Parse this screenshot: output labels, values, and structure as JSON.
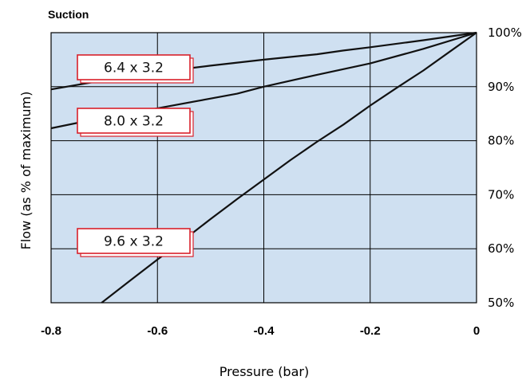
{
  "chart_data": {
    "type": "line",
    "title": "Suction",
    "xlabel": "Pressure (bar)",
    "ylabel": "Flow (as % of maximum)",
    "xlim": [
      -0.8,
      0
    ],
    "ylim": [
      50,
      100
    ],
    "xticks": [
      {
        "value": -0.8,
        "label": "-0.8"
      },
      {
        "value": -0.6,
        "label": "-0.6"
      },
      {
        "value": -0.4,
        "label": "-0.4"
      },
      {
        "value": -0.2,
        "label": "-0.2"
      },
      {
        "value": 0,
        "label": "0"
      }
    ],
    "yticks": [
      {
        "value": 50,
        "label": "50%"
      },
      {
        "value": 60,
        "label": "60%"
      },
      {
        "value": 70,
        "label": "70%"
      },
      {
        "value": 80,
        "label": "80%"
      },
      {
        "value": 90,
        "label": "90%"
      },
      {
        "value": 100,
        "label": "100%"
      }
    ],
    "grid": true,
    "series": [
      {
        "name": "6.4 x 3.2",
        "x": [
          -0.8,
          -0.7,
          -0.6,
          -0.5,
          -0.4,
          -0.3,
          -0.25,
          -0.2,
          -0.1,
          0
        ],
        "y": [
          89.5,
          91.2,
          92.7,
          93.9,
          95.0,
          96.0,
          96.7,
          97.3,
          98.6,
          100
        ]
      },
      {
        "name": "8.0 x 3.2",
        "x": [
          -0.8,
          -0.7,
          -0.6,
          -0.5,
          -0.45,
          -0.4,
          -0.3,
          -0.2,
          -0.1,
          0
        ],
        "y": [
          82.3,
          84.3,
          86.0,
          87.8,
          88.7,
          90.0,
          92.2,
          94.3,
          97.0,
          100
        ]
      },
      {
        "name": "9.6 x 3.2",
        "x": [
          -0.705,
          -0.65,
          -0.6,
          -0.55,
          -0.5,
          -0.45,
          -0.4,
          -0.35,
          -0.3,
          -0.25,
          -0.2,
          -0.15,
          -0.1,
          -0.05,
          0
        ],
        "y": [
          50,
          54.2,
          58.0,
          61.7,
          65.5,
          69.2,
          72.8,
          76.4,
          79.8,
          83.0,
          86.5,
          89.8,
          93.0,
          96.5,
          100
        ]
      }
    ],
    "annotations": [
      "6.4 x 3.2",
      "8.0 x 3.2",
      "9.6 x 3.2"
    ]
  }
}
